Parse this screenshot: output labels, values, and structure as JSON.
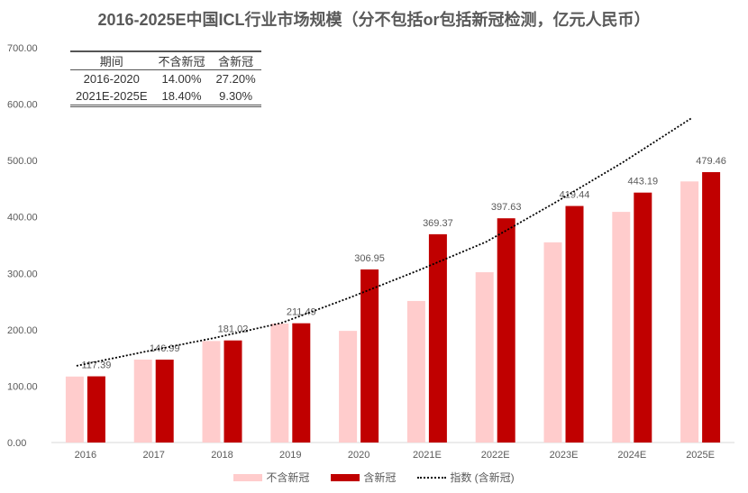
{
  "chart_data": {
    "type": "bar",
    "title": "2016-2025E中国ICL行业市场规模（分不包括or包括新冠检测，亿元人民币）",
    "categories": [
      "2016",
      "2017",
      "2018",
      "2019",
      "2020",
      "2021E",
      "2022E",
      "2023E",
      "2024E",
      "2025E"
    ],
    "series": [
      {
        "name": "不含新冠",
        "color": "#FFCCCC",
        "values": [
          117,
          147,
          180,
          211,
          198,
          251,
          302,
          355,
          409,
          463
        ]
      },
      {
        "name": "含新冠",
        "color": "#C00000",
        "values": [
          117.39,
          146.99,
          181.02,
          211.49,
          306.95,
          369.37,
          397.63,
          419.44,
          443.19,
          479.46
        ],
        "labels": [
          "117.39",
          "146.99",
          "181.02",
          "211.49",
          "306.95",
          "369.37",
          "397.63",
          "419.44",
          "443.19",
          "479.46"
        ]
      },
      {
        "name": "指数 (含新冠)",
        "type": "trendline",
        "style": "dotted",
        "color": "#000000",
        "values": [
          136,
          161,
          185,
          212,
          257,
          305,
          356,
          425,
          497,
          575
        ]
      }
    ],
    "ylim": [
      0,
      700
    ],
    "yticks": [
      "0.00",
      "100.00",
      "200.00",
      "300.00",
      "400.00",
      "500.00",
      "600.00",
      "700.00"
    ],
    "grid": false,
    "legend": "bottom"
  },
  "table": {
    "headers": [
      "期间",
      "不含新冠",
      "含新冠"
    ],
    "rows": [
      [
        "2016-2020",
        "14.00%",
        "27.20%"
      ],
      [
        "2021E-2025E",
        "18.40%",
        "9.30%"
      ]
    ]
  }
}
